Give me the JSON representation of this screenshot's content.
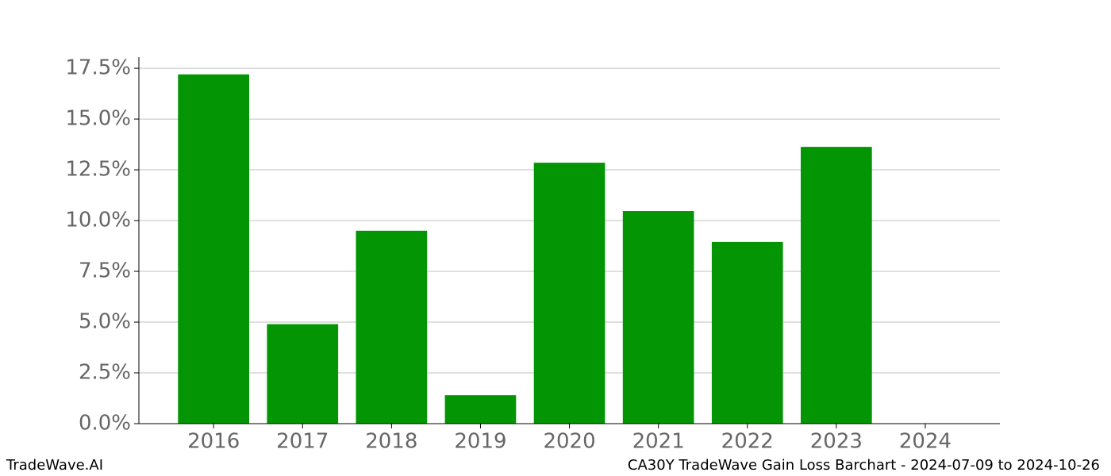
{
  "chart_data": {
    "type": "bar",
    "categories": [
      "2016",
      "2017",
      "2018",
      "2019",
      "2020",
      "2021",
      "2022",
      "2023",
      "2024"
    ],
    "values": [
      17.2,
      4.9,
      9.5,
      1.4,
      12.85,
      10.47,
      8.95,
      13.63,
      null
    ],
    "color": "#039503",
    "ylim": [
      0,
      18.05
    ],
    "yticks": [
      {
        "value": 0,
        "label": "0.0%"
      },
      {
        "value": 2.5,
        "label": "2.5%"
      },
      {
        "value": 5,
        "label": "5.0%"
      },
      {
        "value": 7.5,
        "label": "7.5%"
      },
      {
        "value": 10,
        "label": "10.0%"
      },
      {
        "value": 12.5,
        "label": "12.5%"
      },
      {
        "value": 15,
        "label": "15.0%"
      },
      {
        "value": 17.5,
        "label": "17.5%"
      }
    ],
    "grid": true,
    "footer_left": "TradeWave.AI",
    "footer_right": "CA30Y TradeWave Gain Loss Barchart - 2024-07-09 to 2024-10-26"
  }
}
